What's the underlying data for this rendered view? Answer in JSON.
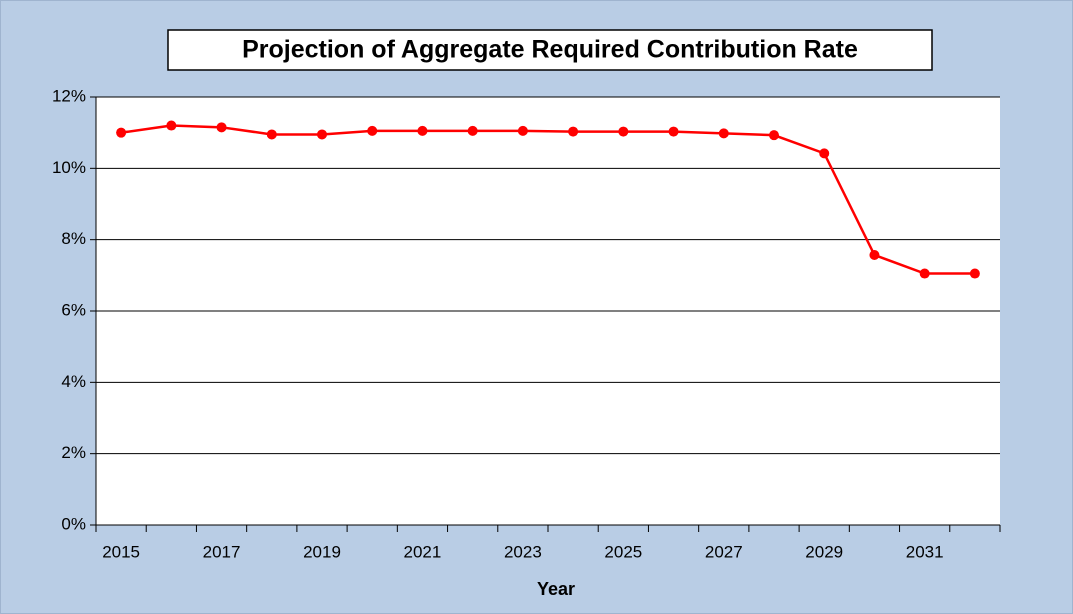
{
  "chart_data": {
    "type": "line",
    "title": "Projection of Aggregate Required Contribution Rate",
    "x_label": "Year",
    "categories": [
      "2015",
      null,
      "2017",
      null,
      "2019",
      null,
      "2021",
      null,
      "2023",
      null,
      "2025",
      null,
      "2027",
      null,
      "2029",
      null,
      "2031",
      null
    ],
    "series": [
      {
        "name": "Aggregate Required Contribution Rate",
        "color": "#ff0000",
        "values": [
          11.0,
          11.2,
          11.15,
          10.95,
          10.95,
          11.05,
          11.05,
          11.05,
          11.05,
          11.03,
          11.03,
          11.03,
          10.98,
          10.93,
          10.42,
          7.57,
          7.05,
          7.05
        ]
      }
    ],
    "ylim": [
      0,
      12
    ],
    "yticks": [
      {
        "value": 0,
        "label": "0%"
      },
      {
        "value": 2,
        "label": "2%"
      },
      {
        "value": 4,
        "label": "4%"
      },
      {
        "value": 6,
        "label": "6%"
      },
      {
        "value": 8,
        "label": "8%"
      },
      {
        "value": 10,
        "label": "10%"
      },
      {
        "value": 12,
        "label": "12%"
      }
    ],
    "grid": true,
    "legend": false
  }
}
